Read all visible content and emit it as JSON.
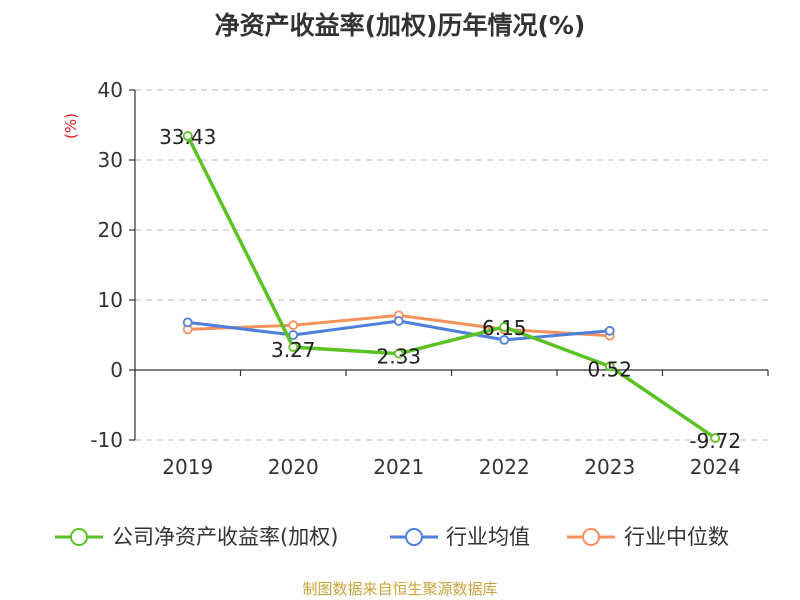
{
  "chart_data": {
    "type": "line",
    "title": "净资产收益率(加权)历年情况(%)",
    "ylabel": "(%)",
    "categories": [
      "2019",
      "2020",
      "2021",
      "2022",
      "2023",
      "2024"
    ],
    "ylim": [
      -10,
      40
    ],
    "yticks": [
      -10,
      0,
      10,
      20,
      30,
      40
    ],
    "grid": true,
    "legend_position": "bottom",
    "series": [
      {
        "name": "公司净资产收益率(加权)",
        "color": "#5bc224",
        "values": [
          33.43,
          3.27,
          2.33,
          6.15,
          0.52,
          -9.72
        ],
        "labels": [
          "33.43",
          "3.27",
          "2.33",
          "6.15",
          "0.52",
          "-9.72"
        ]
      },
      {
        "name": "行业均值",
        "color": "#4e7fdc",
        "values": [
          6.8,
          5.0,
          7.0,
          4.3,
          5.6,
          null
        ]
      },
      {
        "name": "行业中位数",
        "color": "#f4925d",
        "values": [
          5.8,
          6.4,
          7.8,
          5.8,
          4.9,
          null
        ]
      }
    ]
  },
  "footer": {
    "source": "制图数据来自恒生聚源数据库"
  }
}
